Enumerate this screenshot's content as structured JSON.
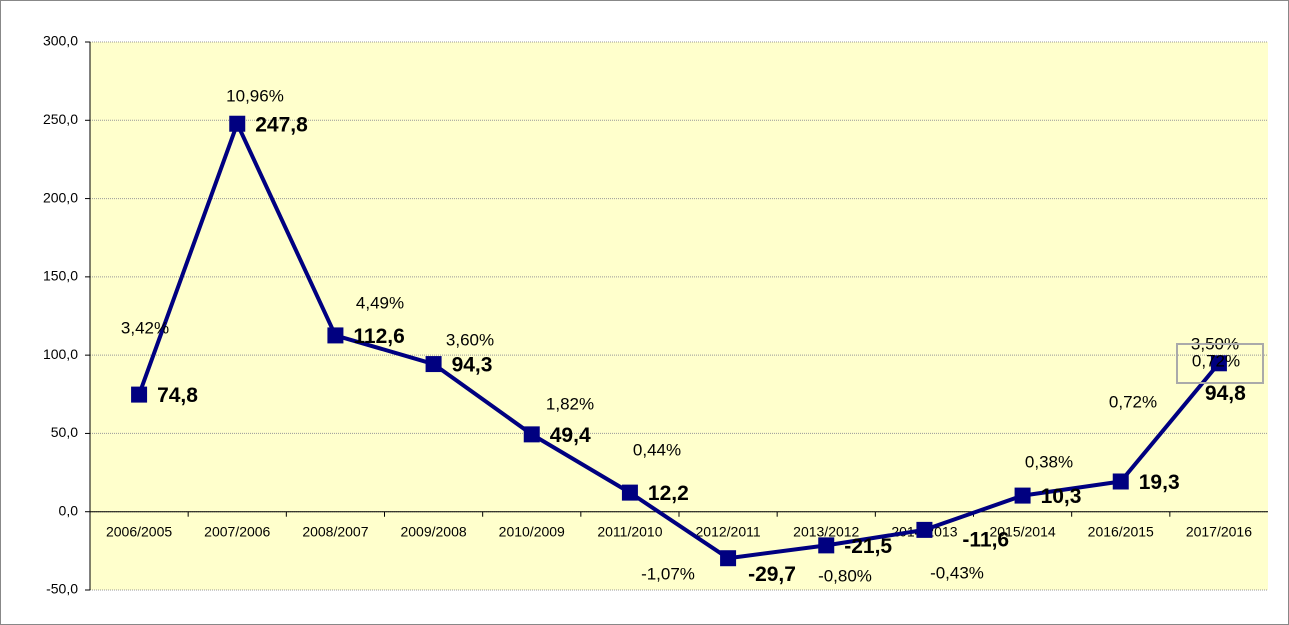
{
  "chart_data": {
    "type": "line",
    "categories": [
      "2006/2005",
      "2007/2006",
      "2008/2007",
      "2009/2008",
      "2010/2009",
      "2011/2010",
      "2012/2011",
      "2013/2012",
      "2014/2013",
      "2015/2014",
      "2016/2015",
      "2017/2016"
    ],
    "series": [
      {
        "name": "",
        "color": "#000080",
        "values": [
          74.8,
          247.8,
          112.6,
          94.3,
          49.4,
          12.2,
          -29.7,
          -21.5,
          -11.6,
          10.3,
          19.3,
          94.8
        ],
        "value_labels": [
          "74,8",
          "247,8",
          "112,6",
          "94,3",
          "49,4",
          "12,2",
          "-29,7",
          "-21,5",
          "-11,6",
          "10,3",
          "19,3",
          "94,8"
        ]
      }
    ],
    "percent_labels": [
      "3,42%",
      "10,96%",
      "4,49%",
      "3,60%",
      "1,82%",
      "0,44%",
      "-1,07%",
      "-0,80%",
      "-0,43%",
      "0,38%",
      "0,72%",
      "3,50%"
    ],
    "annotation": "0,72%",
    "ylim": [
      -50,
      300
    ],
    "yticks": [
      {
        "value": -50,
        "label": "-50,0"
      },
      {
        "value": 0,
        "label": "0,0"
      },
      {
        "value": 50,
        "label": "50,0"
      },
      {
        "value": 100,
        "label": "100,0"
      },
      {
        "value": 150,
        "label": "150,0"
      },
      {
        "value": 200,
        "label": "200,0"
      },
      {
        "value": 250,
        "label": "250,0"
      },
      {
        "value": 300,
        "label": "300,0"
      }
    ],
    "grid": true,
    "background": "#ffffcc"
  }
}
